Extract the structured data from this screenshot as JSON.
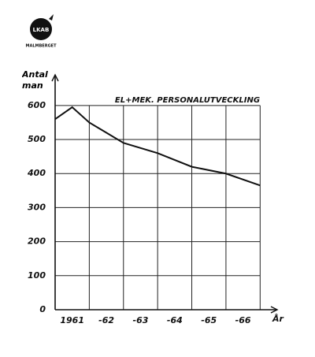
{
  "logo": {
    "name": "LKAB",
    "place": "MALMBERGET"
  },
  "chart_data": {
    "type": "line",
    "title": "EL+MEK. PERSONALUTVECKLING",
    "y_label": "Antal man",
    "x_label": "År",
    "x": [
      1960.5,
      1961,
      1961.5,
      1962.5,
      1963.5,
      1964.5,
      1965.5,
      1966.5
    ],
    "values": [
      560,
      595,
      550,
      490,
      460,
      420,
      400,
      365
    ],
    "color": "#111111",
    "xlim": [
      1960.5,
      1967
    ],
    "xticks": [
      {
        "value": 1961,
        "label": "1961"
      },
      {
        "value": 1962,
        "label": "-62"
      },
      {
        "value": 1963,
        "label": "-63"
      },
      {
        "value": 1964,
        "label": "-64"
      },
      {
        "value": 1965,
        "label": "-65"
      },
      {
        "value": 1966,
        "label": "-66"
      }
    ],
    "ylim": [
      0,
      690
    ],
    "yticks": [
      0,
      100,
      200,
      300,
      400,
      500,
      600
    ],
    "grid": true
  }
}
